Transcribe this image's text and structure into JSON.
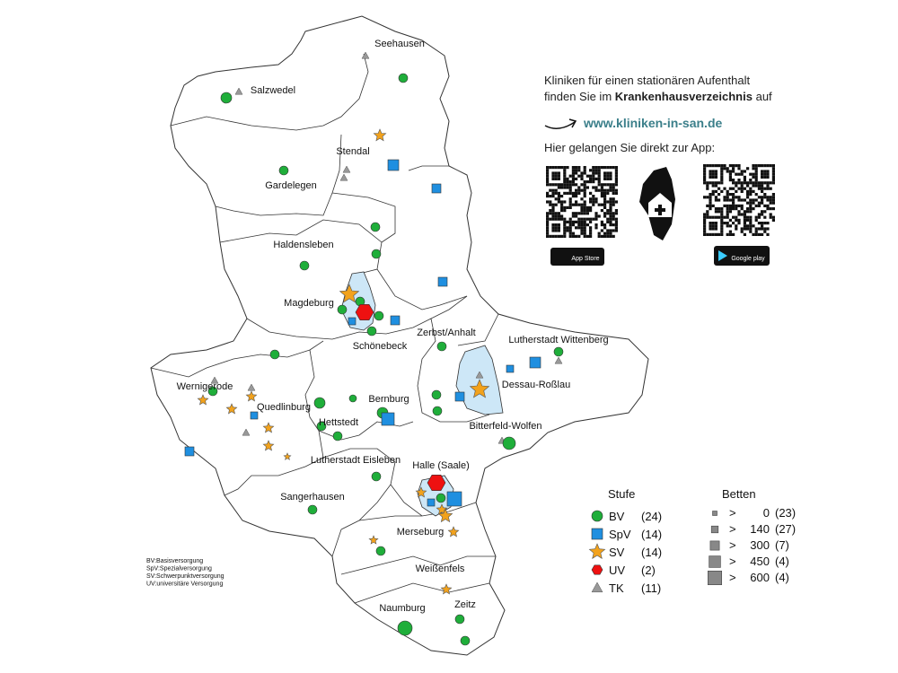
{
  "map": {
    "cities": [
      "Seehausen",
      "Salzwedel",
      "Stendal",
      "Gardelegen",
      "Haldensleben",
      "Magdeburg",
      "Schönebeck",
      "Zerbst/Anhalt",
      "Lutherstadt Wittenberg",
      "Wernigerode",
      "Quedlinburg",
      "Bernburg",
      "Hettstedt",
      "Dessau-Roßlau",
      "Bitterfeld-Wolfen",
      "Lutherstadt Eisleben",
      "Halle (Saale)",
      "Sangerhausen",
      "Merseburg",
      "Weißenfels",
      "Naumburg",
      "Zeitz"
    ],
    "abbreviations": [
      "BV:Basisversorgung",
      "SpV:Spezialversorgung",
      "SV:Schwerpunktversorgung",
      "UV:universitäre Versorgung"
    ]
  },
  "info": {
    "line1": "Kliniken für einen stationären Aufenthalt",
    "line2_start": "finden Sie im",
    "line2_bold": "Krankenhausverzeichnis",
    "line2_end": "auf",
    "url": "www.kliniken-in-san.de",
    "app_line": "Hier gelangen Sie direkt zur App:",
    "app_store": "App Store",
    "google_play": "Google play"
  },
  "legend": {
    "stufe_title": "Stufe",
    "stufe": [
      {
        "label": "BV",
        "count": "(24)"
      },
      {
        "label": "SpV",
        "count": "(14)"
      },
      {
        "label": "SV",
        "count": "(14)"
      },
      {
        "label": "UV",
        "count": "(2)"
      },
      {
        "label": "TK",
        "count": "(11)"
      }
    ],
    "betten_title": "Betten",
    "betten": [
      {
        "op": ">",
        "min": 0,
        "count": "(23)"
      },
      {
        "op": ">",
        "min": 140,
        "count": "(27)"
      },
      {
        "op": ">",
        "min": 300,
        "count": "(7)"
      },
      {
        "op": ">",
        "min": 450,
        "count": "(4)"
      },
      {
        "op": ">",
        "min": 600,
        "count": "(4)"
      }
    ]
  }
}
